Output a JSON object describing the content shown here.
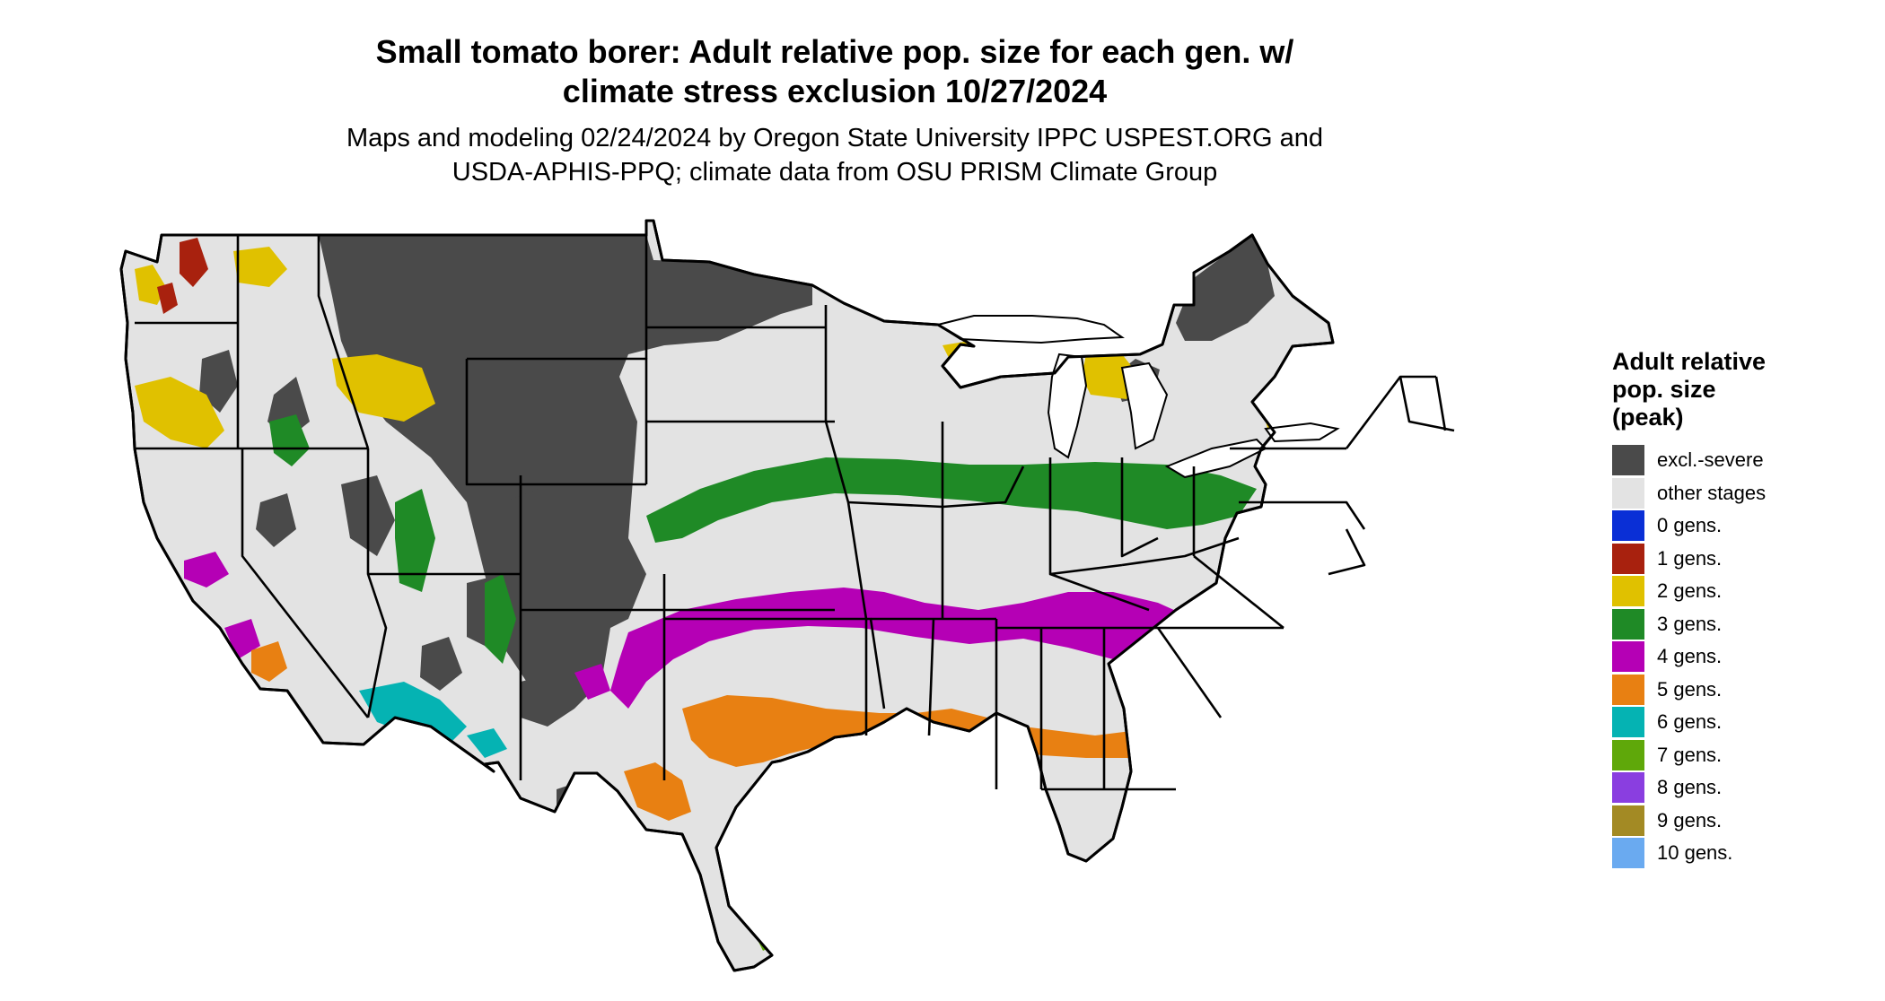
{
  "title": {
    "line1": "Small tomato borer: Adult relative pop. size for each gen. w/",
    "line2": "climate stress exclusion 10/27/2024"
  },
  "subtitle": {
    "line1": "Maps and modeling 02/24/2024 by Oregon State University IPPC USPEST.ORG and",
    "line2": "USDA-APHIS-PPQ; climate data from OSU PRISM Climate Group"
  },
  "legend": {
    "title_line1": "Adult relative",
    "title_line2": "pop. size",
    "title_line3": "(peak)",
    "items": [
      {
        "label": "excl.-severe",
        "color": "#4a4a4a"
      },
      {
        "label": "other stages",
        "color": "#e3e3e3"
      },
      {
        "label": "0 gens.",
        "color": "#0a2fd6"
      },
      {
        "label": "1 gens.",
        "color": "#a8210e"
      },
      {
        "label": "2 gens.",
        "color": "#e0c100"
      },
      {
        "label": "3 gens.",
        "color": "#1f8a26"
      },
      {
        "label": "4 gens.",
        "color": "#b500b5"
      },
      {
        "label": "5 gens.",
        "color": "#e88012"
      },
      {
        "label": "6 gens.",
        "color": "#05b3b3"
      },
      {
        "label": "7 gens.",
        "color": "#5fa80a"
      },
      {
        "label": "8 gens.",
        "color": "#8a3ee0"
      },
      {
        "label": "9 gens.",
        "color": "#a38a24"
      },
      {
        "label": "10 gens.",
        "color": "#6aaaf0"
      }
    ]
  },
  "map": {
    "background": "#e3e3e3",
    "border_color": "#000000"
  }
}
